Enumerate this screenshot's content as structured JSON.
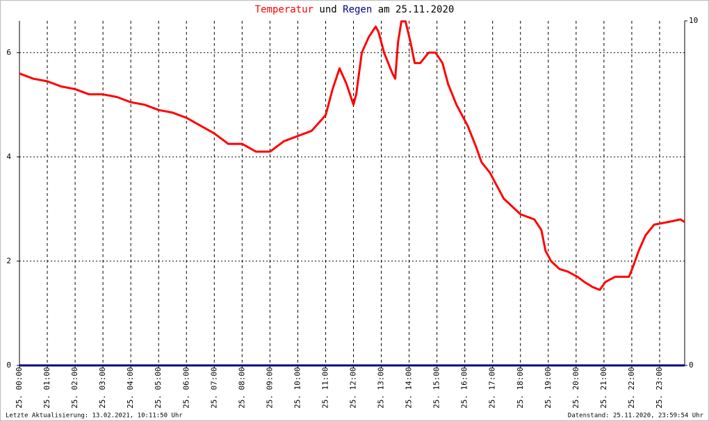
{
  "chart_data": {
    "type": "line",
    "title_words": [
      "und",
      "am 25.11.2020"
    ],
    "series": [
      {
        "name": "Temperatur",
        "color": "#ff0000",
        "axis": "y",
        "x": [
          0,
          0.5,
          1,
          1.5,
          2,
          2.5,
          3,
          3.5,
          4,
          4.5,
          5,
          5.5,
          6,
          6.5,
          7,
          7.5,
          8,
          8.5,
          9,
          9.5,
          10,
          10.5,
          11,
          11.25,
          11.5,
          11.75,
          12,
          12.1,
          12.3,
          12.55,
          12.8,
          12.9,
          13.1,
          13.4,
          13.5,
          13.6,
          13.72,
          13.87,
          14.05,
          14.2,
          14.4,
          14.7,
          14.95,
          15.2,
          15.4,
          15.7,
          15.9,
          16.1,
          16.4,
          16.6,
          16.9,
          17.1,
          17.4,
          17.8,
          18.0,
          18.5,
          18.75,
          18.9,
          19.1,
          19.4,
          19.7,
          20.05,
          20.3,
          20.6,
          20.85,
          21.05,
          21.4,
          21.9,
          22.05,
          22.25,
          22.5,
          22.8,
          23.3,
          23.75,
          23.9
        ],
        "values": [
          5.6,
          5.5,
          5.45,
          5.35,
          5.3,
          5.2,
          5.2,
          5.15,
          5.05,
          5.0,
          4.9,
          4.85,
          4.75,
          4.6,
          4.45,
          4.25,
          4.25,
          4.1,
          4.1,
          4.3,
          4.4,
          4.5,
          4.8,
          5.3,
          5.7,
          5.4,
          5.0,
          5.2,
          6.0,
          6.3,
          6.5,
          6.4,
          6.0,
          5.6,
          5.5,
          6.2,
          6.6,
          6.6,
          6.2,
          5.8,
          5.8,
          6.0,
          6.0,
          5.8,
          5.4,
          5.0,
          4.8,
          4.6,
          4.2,
          3.9,
          3.7,
          3.5,
          3.2,
          3.0,
          2.9,
          2.8,
          2.6,
          2.2,
          2.0,
          1.85,
          1.8,
          1.7,
          1.6,
          1.5,
          1.45,
          1.6,
          1.7,
          1.7,
          1.9,
          2.2,
          2.5,
          2.7,
          2.75,
          2.8,
          2.75
        ]
      },
      {
        "name": "Regen",
        "color": "#000080",
        "axis": "y2",
        "x": [
          0,
          23.9
        ],
        "values": [
          0,
          0
        ]
      }
    ],
    "xlim": [
      0,
      23.9
    ],
    "xticks": [
      {
        "value": 0,
        "label": "25. 00:00"
      },
      {
        "value": 1,
        "label": "25. 01:00"
      },
      {
        "value": 2,
        "label": "25. 02:00"
      },
      {
        "value": 3,
        "label": "25. 03:00"
      },
      {
        "value": 4,
        "label": "25. 04:00"
      },
      {
        "value": 5,
        "label": "25. 05:00"
      },
      {
        "value": 6,
        "label": "25. 06:00"
      },
      {
        "value": 7,
        "label": "25. 07:00"
      },
      {
        "value": 8,
        "label": "25. 08:00"
      },
      {
        "value": 9,
        "label": "25. 09:00"
      },
      {
        "value": 10,
        "label": "25. 10:00"
      },
      {
        "value": 11,
        "label": "25. 11:00"
      },
      {
        "value": 12,
        "label": "25. 12:00"
      },
      {
        "value": 13,
        "label": "25. 13:00"
      },
      {
        "value": 14,
        "label": "25. 14:00"
      },
      {
        "value": 15,
        "label": "25. 15:00"
      },
      {
        "value": 16,
        "label": "25. 16:00"
      },
      {
        "value": 17,
        "label": "25. 17:00"
      },
      {
        "value": 18,
        "label": "25. 18:00"
      },
      {
        "value": 19,
        "label": "25. 19:00"
      },
      {
        "value": 20,
        "label": "25. 20:00"
      },
      {
        "value": 21,
        "label": "25. 21:00"
      },
      {
        "value": 22,
        "label": "25. 22:00"
      },
      {
        "value": 23,
        "label": "25. 23:00"
      }
    ],
    "ylim": [
      0,
      6.61
    ],
    "yticks": [
      0,
      2,
      4,
      6
    ],
    "y2lim": [
      0,
      10
    ],
    "y2ticks": [
      0,
      10
    ],
    "grid": true,
    "footer_left": "Letzte Aktualisierung: 13.02.2021, 10:11:50 Uhr",
    "footer_right": "Datenstand: 25.11.2020, 23:59:54 Uhr"
  }
}
